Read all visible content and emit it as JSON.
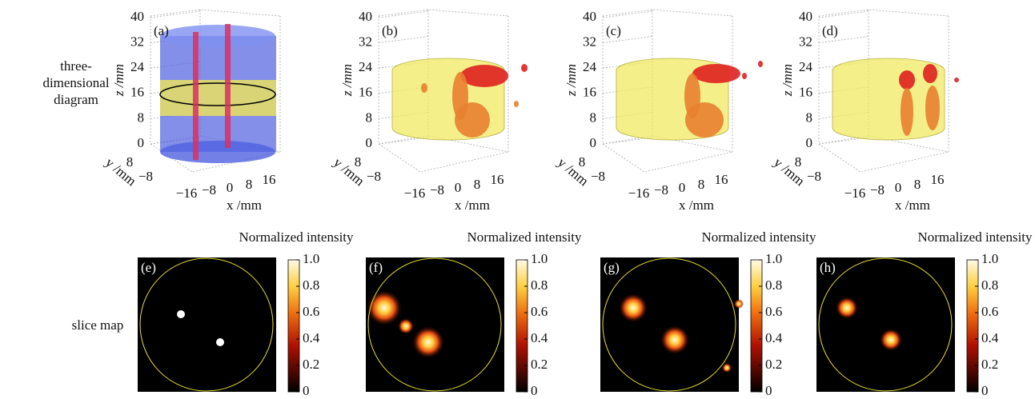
{
  "row_labels": {
    "three_d": [
      "three-",
      "dimensional",
      "diagram"
    ],
    "slice": "slice map"
  },
  "axes_3d": {
    "z_ticks": [
      "0",
      "8",
      "16",
      "24",
      "32",
      "40"
    ],
    "x_ticks": [
      "−16",
      "−8",
      "0",
      "8",
      "16"
    ],
    "y_ticks": [
      "8",
      "−8"
    ],
    "x_label": "x /mm",
    "y_label": "y /mm",
    "z_label": "z /mm"
  },
  "panel_labels_3d": [
    "(a)",
    "(b)",
    "(c)",
    "(d)"
  ],
  "slice_maps": {
    "labels": [
      "(e)",
      "(f)",
      "(g)",
      "(h)"
    ],
    "colorbar_title": "Normalized intensity",
    "colorbar_ticks": [
      "0",
      "0.2",
      "0.4",
      "0.6",
      "0.8",
      "1.0"
    ]
  }
}
